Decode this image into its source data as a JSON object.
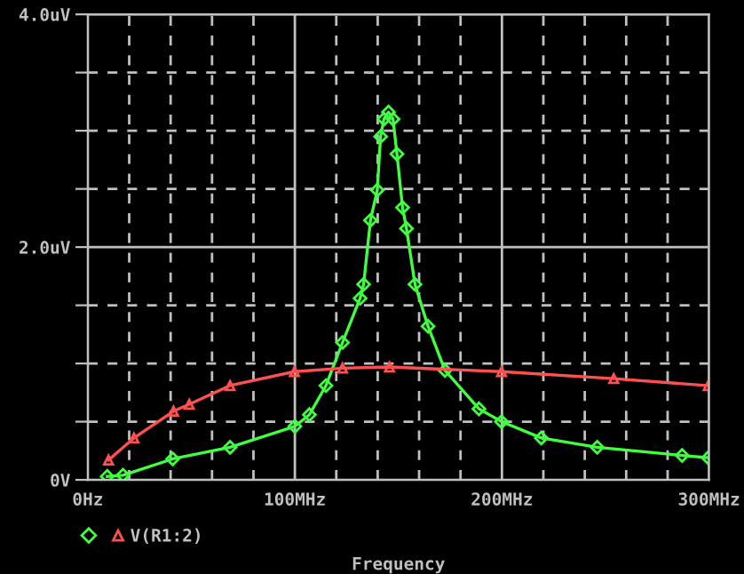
{
  "chart_data": {
    "type": "line",
    "xlabel": "Frequency",
    "xlim": [
      0,
      300
    ],
    "ylim": [
      0,
      4
    ],
    "xticks": [
      {
        "value": 0,
        "label": "0Hz"
      },
      {
        "value": 20,
        "label": null
      },
      {
        "value": 40,
        "label": null
      },
      {
        "value": 60,
        "label": null
      },
      {
        "value": 80,
        "label": null
      },
      {
        "value": 100,
        "label": "100MHz"
      },
      {
        "value": 120,
        "label": null
      },
      {
        "value": 140,
        "label": null
      },
      {
        "value": 160,
        "label": null
      },
      {
        "value": 180,
        "label": null
      },
      {
        "value": 200,
        "label": "200MHz"
      },
      {
        "value": 220,
        "label": null
      },
      {
        "value": 240,
        "label": null
      },
      {
        "value": 260,
        "label": null
      },
      {
        "value": 280,
        "label": null
      },
      {
        "value": 300,
        "label": "300MHz"
      }
    ],
    "yticks": [
      {
        "value": 0,
        "label": "0V"
      },
      {
        "value": 0.5,
        "label": null
      },
      {
        "value": 1,
        "label": null
      },
      {
        "value": 1.5,
        "label": null
      },
      {
        "value": 2,
        "label": "2.0uV"
      },
      {
        "value": 2.5,
        "label": null
      },
      {
        "value": 3,
        "label": null
      },
      {
        "value": 3.5,
        "label": null
      },
      {
        "value": 4,
        "label": "4.0uV"
      }
    ],
    "grid": true,
    "legend": "bottom left",
    "series": [
      {
        "color": "#40ff40",
        "marker": "diamond",
        "x": [
          9.4,
          17,
          41,
          68.7,
          100,
          107,
          115,
          123,
          131.5,
          133.2,
          136.5,
          139.8,
          141.4,
          143,
          145.2,
          147.4,
          149.3,
          152,
          153.9,
          158,
          164.3,
          172.5,
          188.9,
          199.8,
          219,
          246,
          287,
          299.6
        ],
        "values": [
          0.03,
          0.04,
          0.18,
          0.28,
          0.46,
          0.56,
          0.81,
          1.18,
          1.56,
          1.68,
          2.23,
          2.49,
          2.95,
          3.1,
          3.16,
          3.1,
          2.8,
          2.34,
          2.16,
          1.68,
          1.32,
          0.94,
          0.61,
          0.5,
          0.36,
          0.28,
          0.21,
          0.19
        ]
      },
      {
        "name": "V(R1:2)",
        "color": "#ff5050",
        "marker": "triangle",
        "x": [
          10,
          22.3,
          41.4,
          49,
          68.7,
          99.8,
          123,
          145.7,
          199.8,
          254,
          299.6
        ],
        "values": [
          0.17,
          0.36,
          0.59,
          0.65,
          0.81,
          0.93,
          0.96,
          0.97,
          0.93,
          0.87,
          0.81
        ]
      }
    ]
  }
}
